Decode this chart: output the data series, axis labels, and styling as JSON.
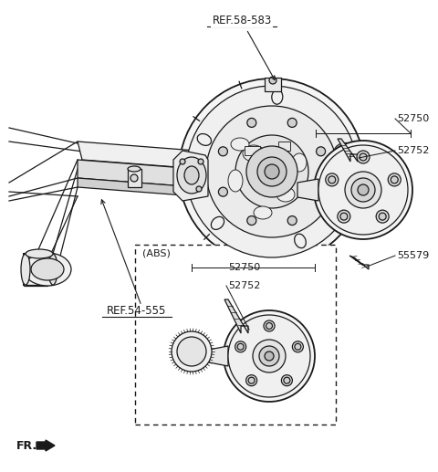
{
  "bg_color": "#ffffff",
  "line_color": "#1a1a1a",
  "labels": {
    "ref58": "REF.58-583",
    "ref54": "REF.54-555",
    "p52750_top": "52750",
    "p52752_top": "52752",
    "p55579": "55579",
    "abs_label": "(ABS)",
    "p52750_bot": "52750",
    "p52752_bot": "52752",
    "fr": "FR."
  },
  "figsize": [
    4.8,
    5.17
  ],
  "dpi": 100
}
